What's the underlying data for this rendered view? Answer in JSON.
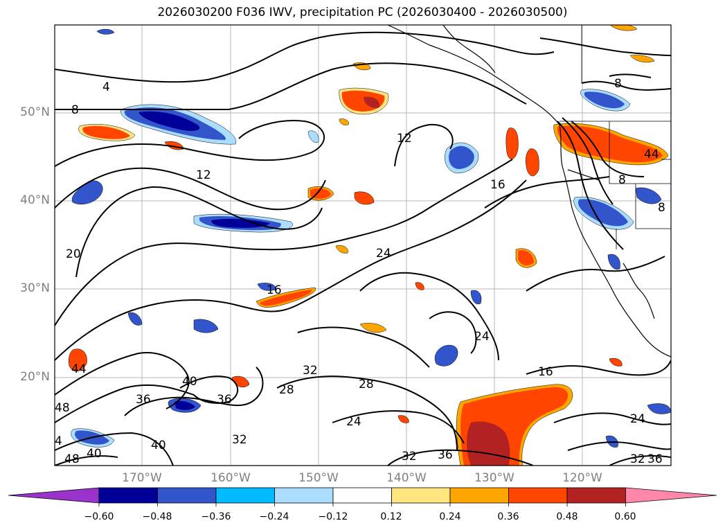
{
  "title": "2026030200 F036 IWV, precipitation PC (2026030400 - 2026030500)",
  "lat_labels": [
    "50°N",
    "40°N",
    "30°N",
    "20°N"
  ],
  "lon_labels": [
    "170°W",
    "160°W",
    "150°W",
    "140°W",
    "130°W",
    "120°W"
  ],
  "colorbar": {
    "ticks": [
      "−0.60",
      "−0.48",
      "−0.36",
      "−0.24",
      "−0.12",
      "0.12",
      "0.24",
      "0.36",
      "0.48",
      "0.60"
    ],
    "colors": [
      "#9933cc",
      "#000099",
      "#3355cc",
      "#00bbff",
      "#aaddff",
      "#ffffff",
      "#ffe680",
      "#ffa500",
      "#ff4500",
      "#b22222",
      "#ff88aa"
    ]
  },
  "contour_labels": [
    "4",
    "8",
    "12",
    "16",
    "20",
    "24",
    "28",
    "32",
    "36",
    "40",
    "44",
    "48"
  ]
}
